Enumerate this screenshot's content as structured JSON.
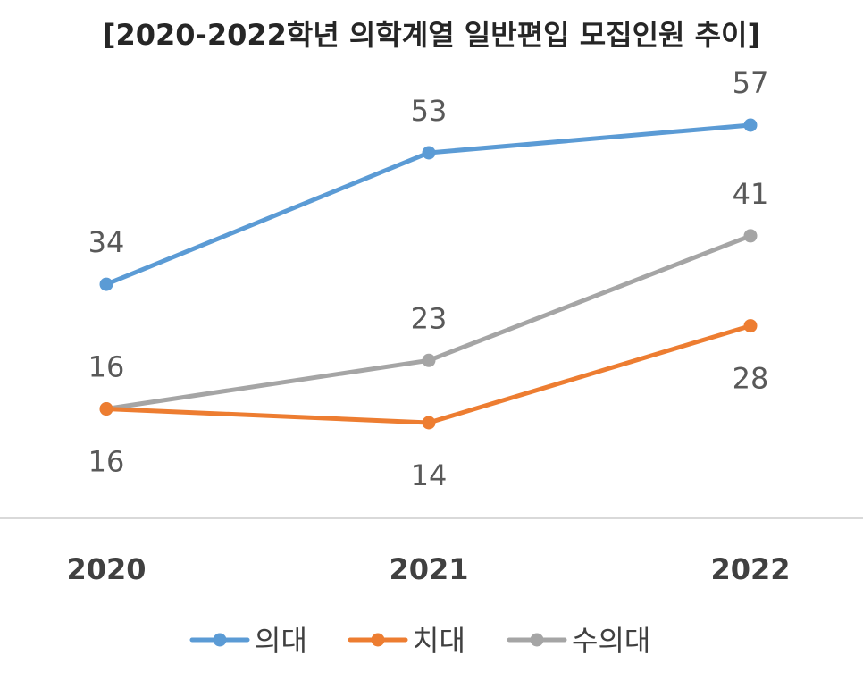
{
  "chart_data": {
    "type": "line",
    "title": "[2020-2022학년 의학계열 일반편입 모집인원 추이]",
    "categories": [
      "2020",
      "2021",
      "2022"
    ],
    "series": [
      {
        "name": "의대",
        "values": [
          34,
          53,
          57
        ],
        "color": "#5B9BD5",
        "label_pos": "above"
      },
      {
        "name": "치대",
        "values": [
          16,
          14,
          28
        ],
        "color": "#ED7D31",
        "label_pos": "below"
      },
      {
        "name": "수의대",
        "values": [
          16,
          23,
          41
        ],
        "color": "#A5A5A5",
        "label_pos": "above"
      }
    ],
    "ylim": [
      0,
      60
    ],
    "grid": false,
    "legend": "bottom"
  }
}
